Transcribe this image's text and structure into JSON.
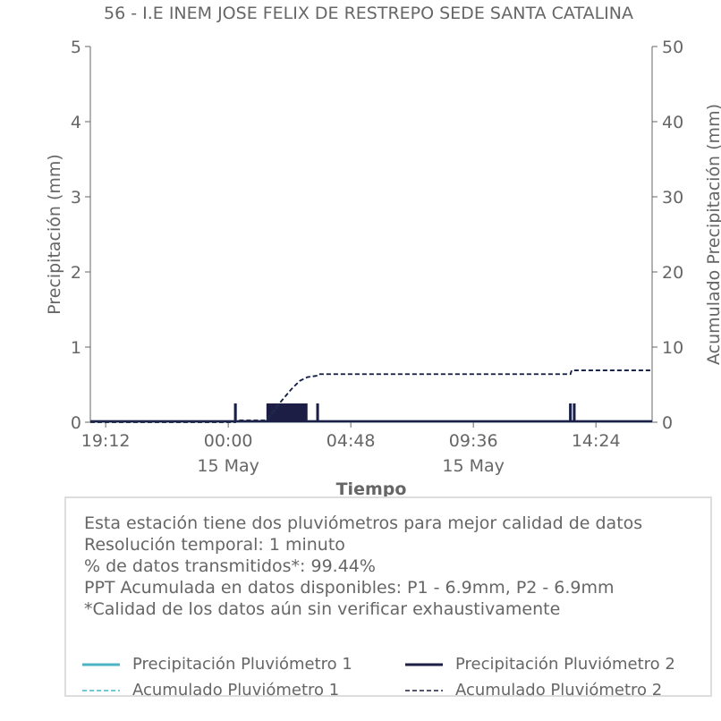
{
  "chart_data": {
    "type": "line",
    "title": "56 - I.E INEM JOSE FELIX DE RESTREPO SEDE SANTA CATALINA",
    "xlabel": "Tiempo",
    "ylabel": "Precipitación (mm)",
    "y2label": "Acumulado Precipitación (mm)",
    "ylim": [
      0,
      5
    ],
    "y2lim": [
      0,
      50
    ],
    "yticks": [
      "0",
      "1",
      "2",
      "3",
      "4",
      "5"
    ],
    "y2ticks": [
      "0",
      "10",
      "20",
      "30",
      "40",
      "50"
    ],
    "xticks": [
      {
        "label": "19:12",
        "sublabel": ""
      },
      {
        "label": "00:00",
        "sublabel": "15 May"
      },
      {
        "label": "04:48",
        "sublabel": ""
      },
      {
        "label": "09:36",
        "sublabel": "15 May"
      },
      {
        "label": "14:24",
        "sublabel": ""
      }
    ],
    "x_range_hours": [
      -5.4,
      16.6
    ],
    "grid": false,
    "colors": {
      "p1": "#4bb3c4",
      "p2": "#1c1e45",
      "axis": "#666666"
    },
    "series": [
      {
        "name": "Precipitación Pluviómetro 1",
        "axis": "left",
        "style": "solid",
        "x": [
          0.28,
          1.55,
          1.7,
          1.85,
          2.0,
          2.15,
          2.3,
          2.45,
          2.6,
          2.75,
          2.9,
          3.05,
          3.5,
          13.4,
          13.55
        ],
        "y": [
          0.25,
          0.25,
          0.25,
          0.25,
          0.25,
          0.25,
          0.25,
          0.25,
          0.25,
          0.25,
          0.25,
          0.25,
          0.25,
          0.25,
          0.25
        ]
      },
      {
        "name": "Precipitación Pluviómetro 2",
        "axis": "left",
        "style": "solid",
        "x": [
          0.28,
          1.55,
          1.7,
          1.85,
          2.0,
          2.15,
          2.3,
          2.45,
          2.6,
          2.75,
          2.9,
          3.05,
          3.5,
          13.4,
          13.55
        ],
        "y": [
          0.25,
          0.25,
          0.25,
          0.25,
          0.25,
          0.25,
          0.25,
          0.25,
          0.25,
          0.25,
          0.25,
          0.25,
          0.25,
          0.25,
          0.25
        ]
      },
      {
        "name": "Acumulado Pluviómetro 1",
        "axis": "right",
        "style": "dashed",
        "x": [
          -5.4,
          0.28,
          0.3,
          1.5,
          2.0,
          2.5,
          2.8,
          3.1,
          3.5,
          3.55,
          13.4,
          13.45,
          16.6
        ],
        "y": [
          0,
          0,
          0.25,
          0.25,
          2.5,
          4.5,
          5.5,
          6.0,
          6.2,
          6.4,
          6.4,
          6.9,
          6.9
        ]
      },
      {
        "name": "Acumulado Pluviómetro 2",
        "axis": "right",
        "style": "dashed",
        "x": [
          -5.4,
          0.28,
          0.3,
          1.5,
          2.0,
          2.5,
          2.8,
          3.1,
          3.5,
          3.55,
          13.4,
          13.45,
          16.6
        ],
        "y": [
          0,
          0,
          0.25,
          0.25,
          2.5,
          4.5,
          5.5,
          6.0,
          6.2,
          6.4,
          6.4,
          6.9,
          6.9
        ]
      }
    ]
  },
  "info": {
    "line1": "Esta estación tiene dos pluviómetros para mejor calidad de datos",
    "line2": "Resolución temporal: 1 minuto",
    "line3": "% de datos transmitidos*: 99.44%",
    "line4": "PPT Acumulada en datos disponibles: P1 - 6.9mm, P2 - 6.9mm",
    "line5": "*Calidad de los datos aún sin verificar exhaustivamente"
  },
  "legend": {
    "p1_rain": "Precipitación Pluviómetro 1",
    "p2_rain": "Precipitación Pluviómetro 2",
    "p1_cum": "Acumulado Pluviómetro 1",
    "p2_cum": "Acumulado Pluviómetro 2"
  }
}
